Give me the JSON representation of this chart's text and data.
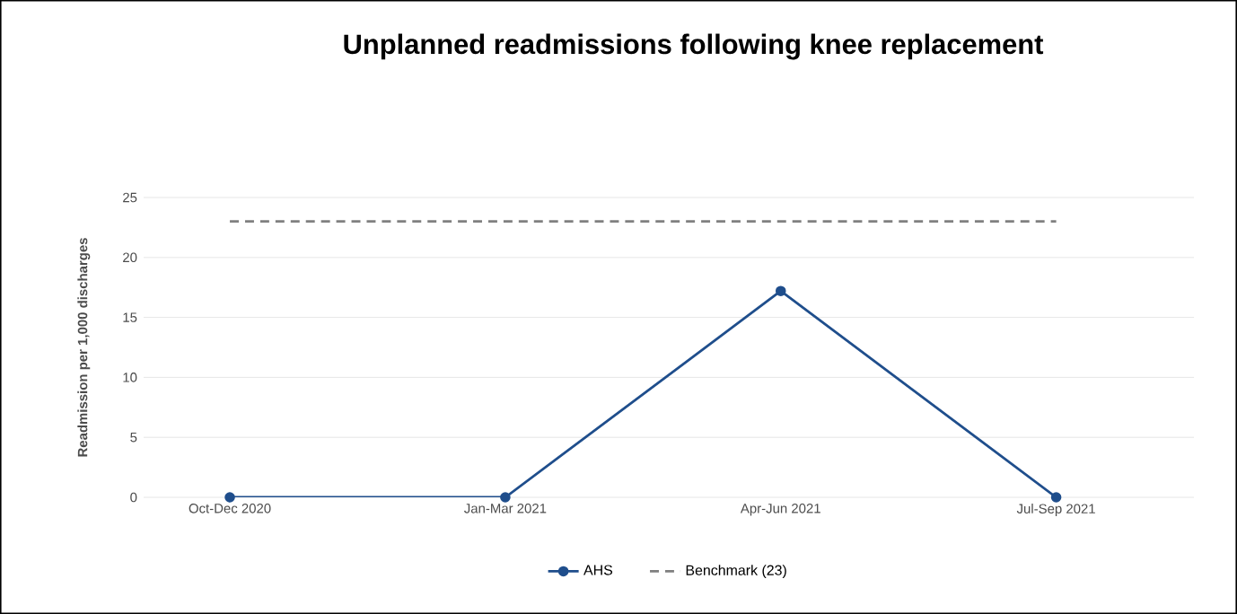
{
  "chart_data": {
    "type": "line",
    "title": "Unplanned readmissions following knee replacement",
    "ylabel": "Readmission  per 1,000 discharges",
    "categories": [
      "Oct-Dec 2020",
      "Jan-Mar 2021",
      "Apr-Jun 2021",
      "Jul-Sep 2021"
    ],
    "series": [
      {
        "name": "AHS",
        "color": "#1f4e8c",
        "values": [
          0,
          0,
          17.2,
          0
        ],
        "marker": "circle",
        "line_style": "solid"
      },
      {
        "name": "Benchmark (23)",
        "color": "#808080",
        "values": [
          23,
          23,
          23,
          23
        ],
        "marker": "none",
        "line_style": "dashed"
      }
    ],
    "ylim": [
      0,
      25
    ],
    "yticks": [
      0,
      5,
      10,
      15,
      20,
      25
    ],
    "grid": "y",
    "legend": "bottom"
  }
}
